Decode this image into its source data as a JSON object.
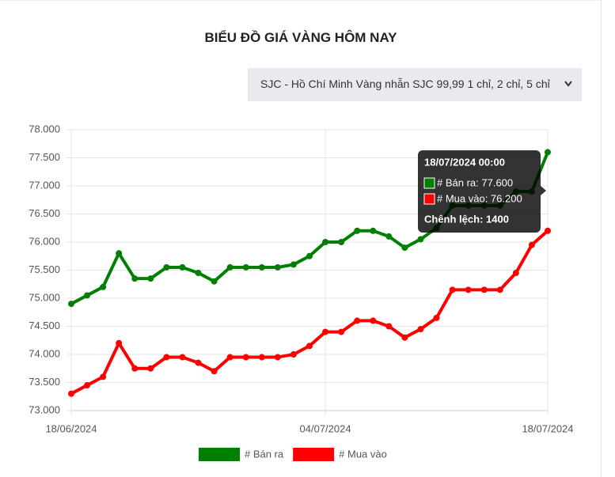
{
  "chart_data": {
    "type": "line",
    "title": "BIỂU ĐỒ GIÁ VÀNG HÔM NAY",
    "selector": "SJC - Hồ Chí Minh Vàng nhẫn SJC 99,99 1 chỉ, 2 chỉ, 5 chỉ",
    "categories": [
      "18/06/2024",
      null,
      null,
      null,
      null,
      null,
      null,
      null,
      null,
      null,
      null,
      null,
      null,
      null,
      null,
      null,
      "04/07/2024",
      null,
      null,
      null,
      null,
      null,
      null,
      null,
      null,
      null,
      null,
      null,
      null,
      null,
      "18/07/2024"
    ],
    "series": [
      {
        "name": "# Bán ra",
        "color": "#008000",
        "values": [
          74900,
          75050,
          75200,
          75800,
          75350,
          75350,
          75550,
          75550,
          75450,
          75300,
          75550,
          75550,
          75550,
          75550,
          75600,
          75750,
          76000,
          76000,
          76200,
          76200,
          76100,
          75900,
          76050,
          76250,
          76650,
          76650,
          76650,
          76650,
          76900,
          76900,
          77600
        ]
      },
      {
        "name": "# Mua vào",
        "color": "#ff0000",
        "values": [
          73300,
          73450,
          73600,
          74200,
          73750,
          73750,
          73950,
          73950,
          73850,
          73700,
          73950,
          73950,
          73950,
          73950,
          74000,
          74150,
          74400,
          74400,
          74600,
          74600,
          74500,
          74300,
          74450,
          74650,
          75150,
          75150,
          75150,
          75150,
          75450,
          75950,
          76200
        ]
      }
    ],
    "ylim": [
      73000,
      78000
    ],
    "yticks": [
      {
        "value": 73000,
        "label": "73.000"
      },
      {
        "value": 73500,
        "label": "73.500"
      },
      {
        "value": 74000,
        "label": "74.000"
      },
      {
        "value": 74500,
        "label": "74.500"
      },
      {
        "value": 75000,
        "label": "75.000"
      },
      {
        "value": 75500,
        "label": "75.500"
      },
      {
        "value": 76000,
        "label": "76.000"
      },
      {
        "value": 76500,
        "label": "76.500"
      },
      {
        "value": 77000,
        "label": "77.000"
      },
      {
        "value": 77500,
        "label": "77.500"
      },
      {
        "value": 78000,
        "label": "78.000"
      }
    ],
    "grid": true,
    "tooltip": {
      "title": "18/07/2024 00:00",
      "lines": [
        "# Bán ra: 77.600",
        "# Mua vào: 76.200"
      ],
      "footer": "Chênh lệch: 1400"
    }
  }
}
